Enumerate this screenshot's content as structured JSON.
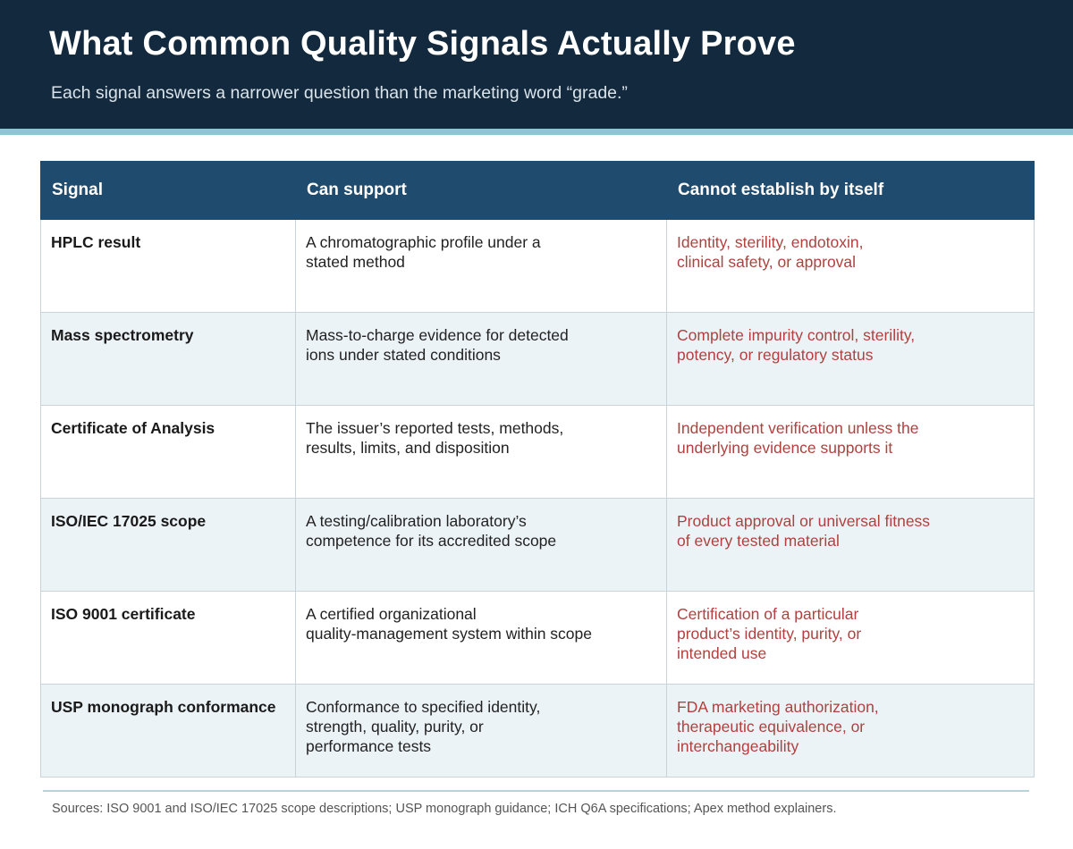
{
  "header": {
    "title": "What Common Quality Signals Actually Prove",
    "subtitle": "Each signal answers a narrower question than the marketing word “grade.”"
  },
  "table": {
    "columns": [
      "Signal",
      "Can support",
      "Cannot establish by itself"
    ],
    "rows": [
      {
        "signal": "HPLC result",
        "can_support": "A chromatographic profile under a\nstated method",
        "cannot_establish": "Identity, sterility, endotoxin,\nclinical safety, or approval"
      },
      {
        "signal": "Mass spectrometry",
        "can_support": "Mass-to-charge evidence for detected\nions under stated conditions",
        "cannot_establish": "Complete impurity control, sterility,\npotency, or regulatory status"
      },
      {
        "signal": "Certificate of Analysis",
        "can_support": "The issuer’s reported tests, methods,\nresults, limits, and disposition",
        "cannot_establish": "Independent verification unless the\nunderlying evidence supports it"
      },
      {
        "signal": "ISO/IEC 17025 scope",
        "can_support": "A testing/calibration laboratory’s\ncompetence for its accredited scope",
        "cannot_establish": "Product approval or universal fitness\nof every tested material"
      },
      {
        "signal": "ISO 9001 certificate",
        "can_support": "A certified organizational\nquality-management system within scope",
        "cannot_establish": "Certification of a particular\nproduct’s identity, purity, or\nintended use"
      },
      {
        "signal": "USP monograph conformance",
        "can_support": "Conformance to specified identity,\nstrength, quality, purity, or\nperformance tests",
        "cannot_establish": "FDA marketing authorization,\ntherapeutic equivalence, or\ninterchangeability"
      }
    ]
  },
  "footer": {
    "sources": "Sources: ISO 9001 and ISO/IEC 17025 scope descriptions; USP monograph guidance; ICH Q6A specifications; Apex method explainers."
  },
  "colors": {
    "header_bg": "#13293d",
    "accent_rule": "#8ec6d6",
    "table_header_bg": "#1f4b6e",
    "row_alt_bg": "#ecf3f7",
    "limitation_text": "#b0413e"
  }
}
